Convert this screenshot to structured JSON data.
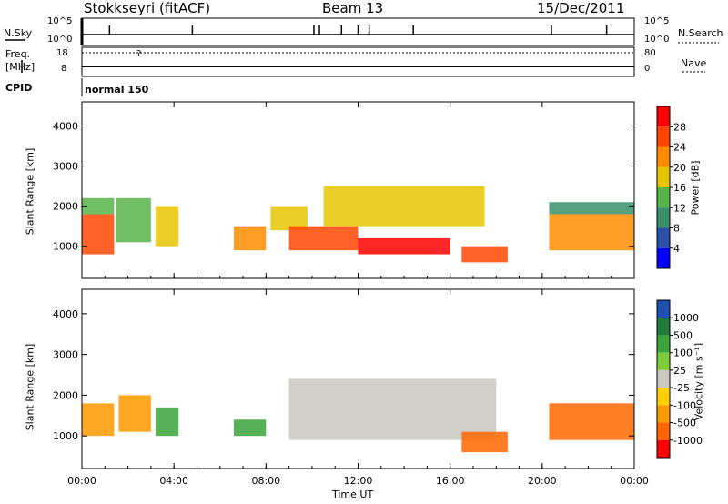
{
  "header": {
    "station": "Stokkseyri (fitACF)",
    "beam": "Beam 13",
    "date": "15/Dec/2011"
  },
  "sky_panel": {
    "left_label": "N.Sky",
    "right_label": "N.Search",
    "left_ticks": [
      "10^5",
      "10^0"
    ],
    "right_ticks": [
      "10^5",
      "10^0"
    ]
  },
  "freq_panel": {
    "left_label_1": "Freq.",
    "left_label_2": "[MHz]",
    "left_ticks": [
      "18",
      "8"
    ],
    "right_ticks": [
      "80",
      "0"
    ],
    "right_label": "Nave",
    "cpid_label": "CPID",
    "mode": "normal 150",
    "question": "?"
  },
  "colors": {
    "power_scale": [
      "#0000ff",
      "#2c4fa8",
      "#3a8f6a",
      "#59b34a",
      "#e6c400",
      "#ff8c00",
      "#ff4500",
      "#ff0000"
    ],
    "velocity_scale": [
      "#1f4fb3",
      "#1e7b3a",
      "#3aa33a",
      "#7fcc3a",
      "#c8c8c0",
      "#ffd000",
      "#ff9900",
      "#ff6600",
      "#ff0000"
    ]
  },
  "chart_data": [
    {
      "type": "heatmap",
      "title": "",
      "xlabel": "Time UT",
      "ylabel": "Slant Range [km]",
      "xlim": [
        0,
        24
      ],
      "ylim": [
        200,
        4600
      ],
      "xticks": [
        "00:00",
        "04:00",
        "08:00",
        "12:00",
        "16:00",
        "20:00",
        "00:00"
      ],
      "yticks": [
        "1000",
        "2000",
        "3000",
        "4000"
      ],
      "colorbar": {
        "label": "Power [dB]",
        "ticks": [
          "28",
          "24",
          "20",
          "16",
          "12",
          "8",
          "4"
        ],
        "range": [
          0,
          30
        ]
      },
      "regions": [
        {
          "t0": 0.0,
          "t1": 1.4,
          "r0": 800,
          "r1": 1800,
          "value": 26
        },
        {
          "t0": 0.0,
          "t1": 1.4,
          "r0": 1800,
          "r1": 2200,
          "value": 12
        },
        {
          "t0": 1.5,
          "t1": 3.0,
          "r0": 1100,
          "r1": 2200,
          "value": 14
        },
        {
          "t0": 3.2,
          "t1": 4.2,
          "r0": 1000,
          "r1": 2000,
          "value": 16
        },
        {
          "t0": 6.6,
          "t1": 8.0,
          "r0": 900,
          "r1": 1500,
          "value": 20
        },
        {
          "t0": 8.2,
          "t1": 9.8,
          "r0": 1400,
          "r1": 2000,
          "value": 16
        },
        {
          "t0": 9.0,
          "t1": 12.0,
          "r0": 900,
          "r1": 1500,
          "value": 26
        },
        {
          "t0": 12.0,
          "t1": 16.0,
          "r0": 800,
          "r1": 1200,
          "value": 28
        },
        {
          "t0": 10.5,
          "t1": 17.5,
          "r0": 1500,
          "r1": 2500,
          "value": 16
        },
        {
          "t0": 16.5,
          "t1": 18.5,
          "r0": 600,
          "r1": 1000,
          "value": 24
        },
        {
          "t0": 20.3,
          "t1": 24.0,
          "r0": 900,
          "r1": 1800,
          "value": 22
        },
        {
          "t0": 20.3,
          "t1": 24.0,
          "r0": 1800,
          "r1": 2100,
          "value": 10
        }
      ]
    },
    {
      "type": "heatmap",
      "title": "",
      "xlabel": "Time UT",
      "ylabel": "Slant Range [km]",
      "xlim": [
        0,
        24
      ],
      "ylim": [
        200,
        4600
      ],
      "xticks": [
        "00:00",
        "04:00",
        "08:00",
        "12:00",
        "16:00",
        "20:00",
        "00:00"
      ],
      "yticks": [
        "1000",
        "2000",
        "3000",
        "4000"
      ],
      "colorbar": {
        "label": "Velocity [m s⁻¹]",
        "ticks": [
          "1000",
          "500",
          "100",
          "25",
          "-25",
          "-100",
          "-500",
          "-1000"
        ],
        "range": [
          -1000,
          1000
        ]
      },
      "regions": [
        {
          "t0": 0.0,
          "t1": 1.4,
          "r0": 1000,
          "r1": 1800,
          "value": -300
        },
        {
          "t0": 1.6,
          "t1": 3.0,
          "r0": 1100,
          "r1": 2000,
          "value": -200
        },
        {
          "t0": 3.2,
          "t1": 4.2,
          "r0": 1000,
          "r1": 1700,
          "value": 60
        },
        {
          "t0": 6.6,
          "t1": 8.0,
          "r0": 1000,
          "r1": 1400,
          "value": 80
        },
        {
          "t0": 9.0,
          "t1": 18.0,
          "r0": 900,
          "r1": 2400,
          "value": 0
        },
        {
          "t0": 16.5,
          "t1": 18.5,
          "r0": 600,
          "r1": 1100,
          "value": -600
        },
        {
          "t0": 20.3,
          "t1": 24.0,
          "r0": 900,
          "r1": 1800,
          "value": -500
        }
      ]
    }
  ]
}
